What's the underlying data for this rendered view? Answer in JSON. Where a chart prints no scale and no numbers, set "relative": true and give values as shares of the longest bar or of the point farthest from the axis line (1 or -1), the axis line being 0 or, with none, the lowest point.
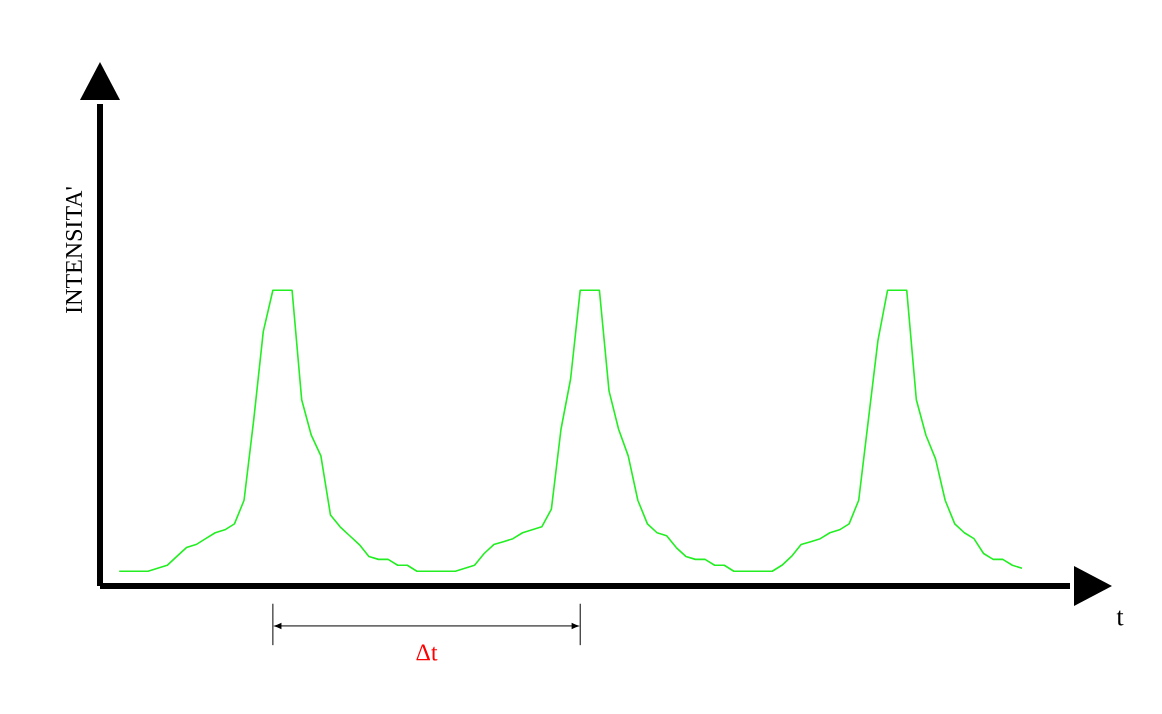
{
  "chart_data": {
    "type": "line",
    "xlabel": "t",
    "ylabel": "INTENSITA'",
    "relative": true,
    "color": "#22ee22",
    "annotations": [
      "Δt"
    ],
    "categories": [
      null,
      null,
      null,
      null,
      null,
      null,
      null,
      null,
      null,
      null,
      null,
      null,
      null,
      null,
      null,
      null,
      null,
      null,
      null,
      null,
      null,
      null,
      null,
      null,
      null,
      null,
      null,
      null,
      null,
      null,
      null,
      null,
      null,
      null,
      null,
      null,
      null,
      null,
      null,
      null,
      null,
      null,
      null,
      null,
      null,
      null,
      null,
      null,
      null,
      null,
      null,
      null,
      null,
      null,
      null,
      null,
      null,
      null,
      null,
      null,
      null,
      null,
      null,
      null,
      null,
      null,
      null,
      null,
      null,
      null,
      null,
      null,
      null,
      null,
      null,
      null,
      null,
      null,
      null,
      null,
      null,
      null,
      null,
      null,
      null,
      null,
      null,
      null,
      null,
      null,
      null,
      null,
      null,
      null,
      null
    ],
    "values": [
      0.05,
      0.05,
      0.05,
      0.05,
      0.06,
      0.07,
      0.1,
      0.13,
      0.14,
      0.16,
      0.18,
      0.19,
      0.21,
      0.29,
      0.56,
      0.86,
      1,
      1,
      1,
      0.63,
      0.51,
      0.44,
      0.24,
      0.2,
      0.17,
      0.14,
      0.1,
      0.09,
      0.09,
      0.07,
      0.07,
      0.05,
      0.05,
      0.05,
      0.05,
      0.05,
      0.06,
      0.07,
      0.11,
      0.14,
      0.15,
      0.16,
      0.18,
      0.19,
      0.2,
      0.26,
      0.53,
      0.7,
      1,
      1,
      1,
      0.66,
      0.53,
      0.44,
      0.29,
      0.21,
      0.18,
      0.17,
      0.13,
      0.1,
      0.09,
      0.09,
      0.07,
      0.07,
      0.05,
      0.05,
      0.05,
      0.05,
      0.05,
      0.07,
      0.1,
      0.14,
      0.15,
      0.16,
      0.18,
      0.19,
      0.21,
      0.29,
      0.56,
      0.83,
      1,
      1,
      1,
      0.63,
      0.51,
      0.43,
      0.29,
      0.21,
      0.18,
      0.16,
      0.11,
      0.09,
      0.09,
      0.07,
      0.06
    ]
  }
}
